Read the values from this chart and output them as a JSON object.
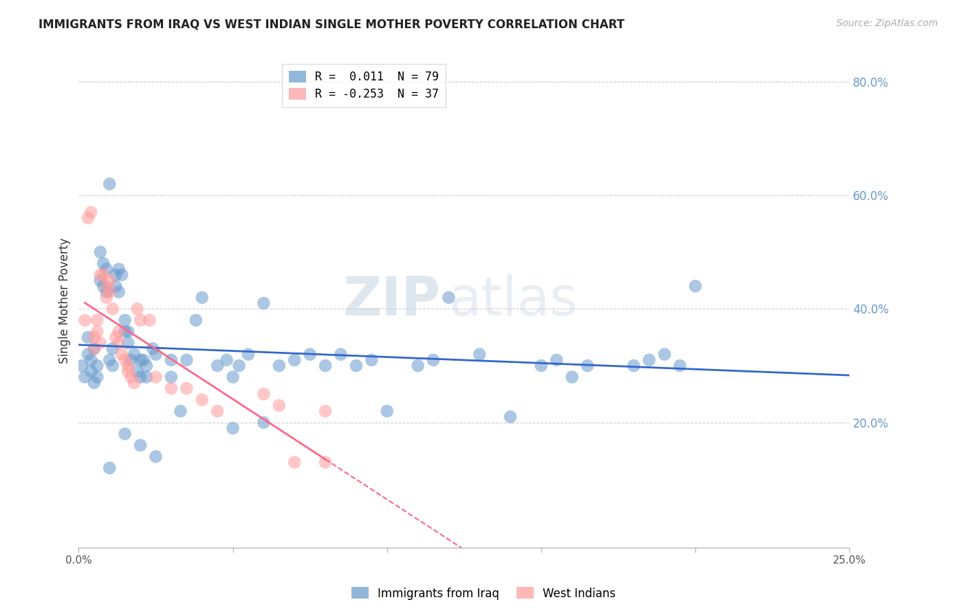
{
  "title": "IMMIGRANTS FROM IRAQ VS WEST INDIAN SINGLE MOTHER POVERTY CORRELATION CHART",
  "source": "Source: ZipAtlas.com",
  "ylabel": "Single Mother Poverty",
  "right_ytick_labels": [
    "20.0%",
    "40.0%",
    "60.0%",
    "80.0%"
  ],
  "right_ytick_values": [
    0.2,
    0.4,
    0.6,
    0.8
  ],
  "xlim": [
    0.0,
    0.25
  ],
  "ylim": [
    -0.02,
    0.85
  ],
  "legend_r1": "R =  0.011  N = 79",
  "legend_r2": "R = -0.253  N = 37",
  "blue_color": "#6699CC",
  "pink_color": "#FF9999",
  "blue_line_color": "#3366CC",
  "pink_line_color": "#FF6688",
  "watermark_zip": "ZIP",
  "watermark_atlas": "atlas",
  "blue_scatter": [
    [
      0.001,
      0.3
    ],
    [
      0.002,
      0.28
    ],
    [
      0.003,
      0.32
    ],
    [
      0.003,
      0.35
    ],
    [
      0.004,
      0.31
    ],
    [
      0.004,
      0.29
    ],
    [
      0.005,
      0.33
    ],
    [
      0.005,
      0.27
    ],
    [
      0.006,
      0.3
    ],
    [
      0.006,
      0.28
    ],
    [
      0.007,
      0.5
    ],
    [
      0.007,
      0.45
    ],
    [
      0.008,
      0.48
    ],
    [
      0.008,
      0.44
    ],
    [
      0.009,
      0.47
    ],
    [
      0.009,
      0.43
    ],
    [
      0.01,
      0.62
    ],
    [
      0.01,
      0.31
    ],
    [
      0.011,
      0.3
    ],
    [
      0.011,
      0.33
    ],
    [
      0.012,
      0.46
    ],
    [
      0.012,
      0.44
    ],
    [
      0.013,
      0.47
    ],
    [
      0.013,
      0.43
    ],
    [
      0.014,
      0.46
    ],
    [
      0.015,
      0.36
    ],
    [
      0.015,
      0.38
    ],
    [
      0.016,
      0.36
    ],
    [
      0.016,
      0.34
    ],
    [
      0.017,
      0.31
    ],
    [
      0.018,
      0.32
    ],
    [
      0.019,
      0.29
    ],
    [
      0.02,
      0.28
    ],
    [
      0.02,
      0.31
    ],
    [
      0.021,
      0.31
    ],
    [
      0.022,
      0.3
    ],
    [
      0.022,
      0.28
    ],
    [
      0.024,
      0.33
    ],
    [
      0.025,
      0.32
    ],
    [
      0.03,
      0.31
    ],
    [
      0.03,
      0.28
    ],
    [
      0.033,
      0.22
    ],
    [
      0.035,
      0.31
    ],
    [
      0.038,
      0.38
    ],
    [
      0.04,
      0.42
    ],
    [
      0.045,
      0.3
    ],
    [
      0.048,
      0.31
    ],
    [
      0.05,
      0.28
    ],
    [
      0.052,
      0.3
    ],
    [
      0.055,
      0.32
    ],
    [
      0.06,
      0.41
    ],
    [
      0.065,
      0.3
    ],
    [
      0.07,
      0.31
    ],
    [
      0.075,
      0.32
    ],
    [
      0.08,
      0.3
    ],
    [
      0.085,
      0.32
    ],
    [
      0.09,
      0.3
    ],
    [
      0.095,
      0.31
    ],
    [
      0.1,
      0.22
    ],
    [
      0.11,
      0.3
    ],
    [
      0.115,
      0.31
    ],
    [
      0.12,
      0.42
    ],
    [
      0.13,
      0.32
    ],
    [
      0.14,
      0.21
    ],
    [
      0.15,
      0.3
    ],
    [
      0.155,
      0.31
    ],
    [
      0.16,
      0.28
    ],
    [
      0.165,
      0.3
    ],
    [
      0.18,
      0.3
    ],
    [
      0.185,
      0.31
    ],
    [
      0.19,
      0.32
    ],
    [
      0.195,
      0.3
    ],
    [
      0.05,
      0.19
    ],
    [
      0.06,
      0.2
    ],
    [
      0.015,
      0.18
    ],
    [
      0.01,
      0.12
    ],
    [
      0.02,
      0.16
    ],
    [
      0.2,
      0.44
    ],
    [
      0.025,
      0.14
    ]
  ],
  "pink_scatter": [
    [
      0.002,
      0.38
    ],
    [
      0.003,
      0.56
    ],
    [
      0.004,
      0.57
    ],
    [
      0.005,
      0.35
    ],
    [
      0.005,
      0.33
    ],
    [
      0.006,
      0.38
    ],
    [
      0.006,
      0.36
    ],
    [
      0.007,
      0.34
    ],
    [
      0.007,
      0.46
    ],
    [
      0.008,
      0.46
    ],
    [
      0.009,
      0.44
    ],
    [
      0.009,
      0.42
    ],
    [
      0.01,
      0.45
    ],
    [
      0.01,
      0.43
    ],
    [
      0.011,
      0.4
    ],
    [
      0.012,
      0.35
    ],
    [
      0.013,
      0.36
    ],
    [
      0.013,
      0.34
    ],
    [
      0.014,
      0.32
    ],
    [
      0.015,
      0.31
    ],
    [
      0.016,
      0.29
    ],
    [
      0.016,
      0.3
    ],
    [
      0.017,
      0.28
    ],
    [
      0.018,
      0.27
    ],
    [
      0.019,
      0.4
    ],
    [
      0.02,
      0.38
    ],
    [
      0.023,
      0.38
    ],
    [
      0.025,
      0.28
    ],
    [
      0.03,
      0.26
    ],
    [
      0.035,
      0.26
    ],
    [
      0.04,
      0.24
    ],
    [
      0.045,
      0.22
    ],
    [
      0.06,
      0.25
    ],
    [
      0.065,
      0.23
    ],
    [
      0.08,
      0.22
    ],
    [
      0.07,
      0.13
    ],
    [
      0.08,
      0.13
    ]
  ]
}
